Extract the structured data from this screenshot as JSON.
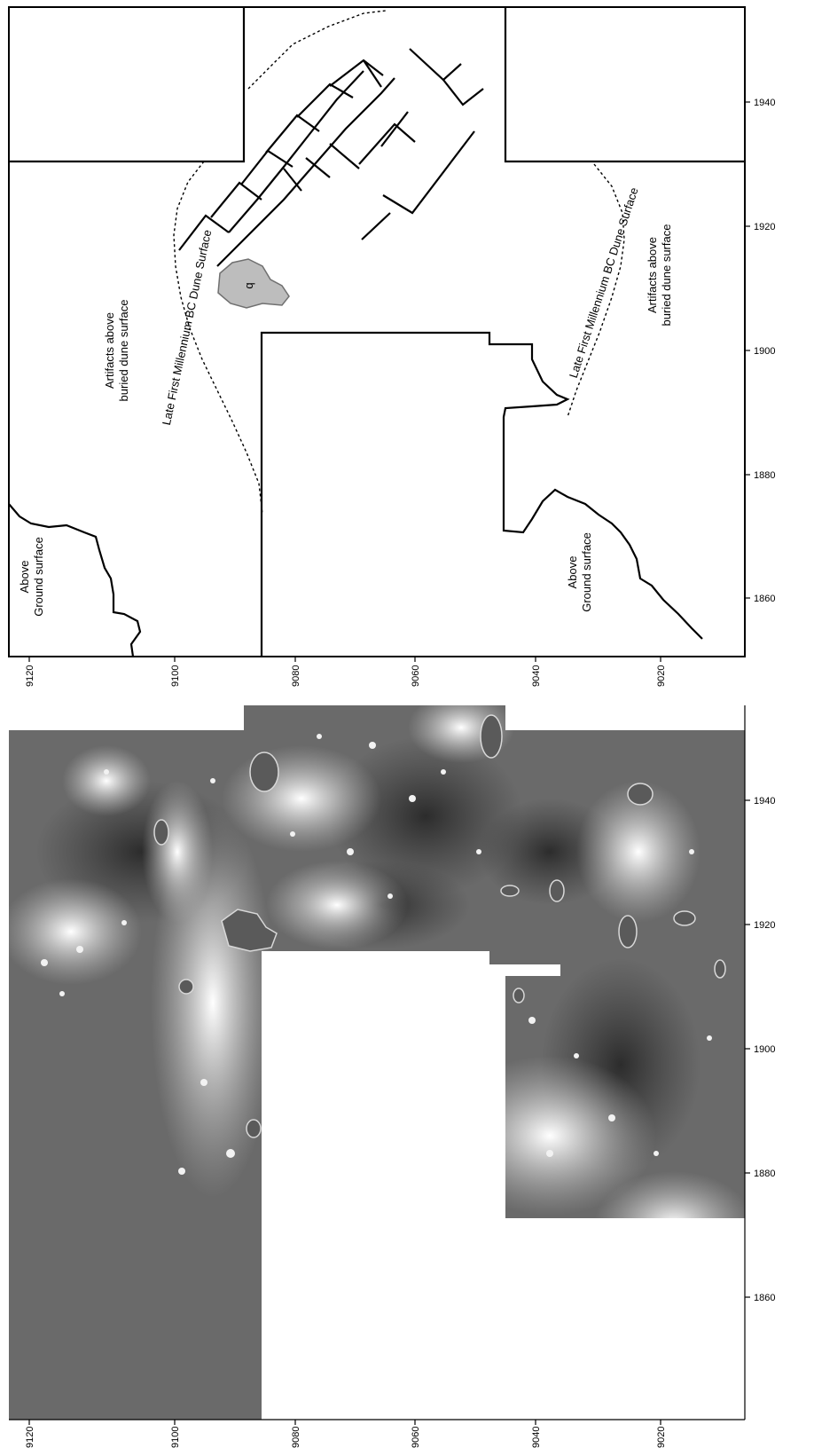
{
  "top_map": {
    "x_ticks": [
      "1860",
      "1880",
      "1900",
      "1920",
      "1940"
    ],
    "y_ticks": [
      "9120",
      "9100",
      "9080",
      "9060",
      "9040",
      "9020"
    ],
    "labels": {
      "above_ground_left_line1": "Above",
      "above_ground_left_line2": "Ground surface",
      "above_ground_right_line1": "Above",
      "above_ground_right_line2": "Ground surface",
      "artifacts_left_line1": "Artifacts above",
      "artifacts_left_line2": "buried dune surface",
      "artifacts_right_line1": "Artifacts above",
      "artifacts_right_line2": "buried dune surface",
      "dune_left": "Late First Millennium BC Dune Surface",
      "dune_right": "Late First Millennium BC Dune Surface",
      "feature_b": "b"
    }
  },
  "bottom_map": {
    "x_ticks": [
      "1860",
      "1880",
      "1900",
      "1920",
      "1940"
    ],
    "y_ticks": [
      "9120",
      "9100",
      "9080",
      "9060",
      "9040",
      "9020"
    ]
  }
}
